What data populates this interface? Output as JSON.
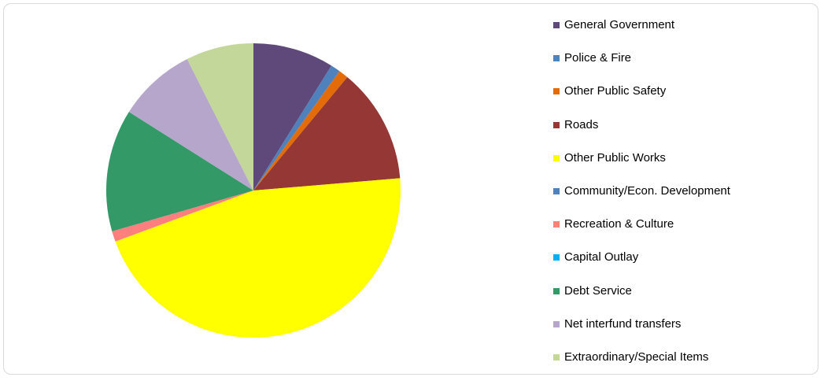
{
  "chart_data": {
    "type": "pie",
    "title": "",
    "legend_position": "right",
    "start_angle_deg": 0,
    "direction": "clockwise",
    "slices": [
      {
        "label": "General Government",
        "value": 9.2,
        "color": "#5f497a"
      },
      {
        "label": "Police & Fire",
        "value": 1.1,
        "color": "#4f81bd"
      },
      {
        "label": "Other Public Safety",
        "value": 1.1,
        "color": "#e36c09"
      },
      {
        "label": "Roads",
        "value": 13.1,
        "color": "#953735"
      },
      {
        "label": "Other Public Works",
        "value": 47.3,
        "color": "#ffff00"
      },
      {
        "label": "Community/Econ. Development",
        "value": 0.0,
        "color": "#4f81bd"
      },
      {
        "label": "Recreation & Culture",
        "value": 1.2,
        "color": "#ff7f7f"
      },
      {
        "label": "Capital Outlay",
        "value": 0.0,
        "color": "#00b0f0"
      },
      {
        "label": "Debt Service",
        "value": 13.9,
        "color": "#339966"
      },
      {
        "label": "Net interfund transfers",
        "value": 8.9,
        "color": "#b7a6cc"
      },
      {
        "label": "Extraordinary/Special Items",
        "value": 7.7,
        "color": "#c4d79b"
      }
    ]
  }
}
